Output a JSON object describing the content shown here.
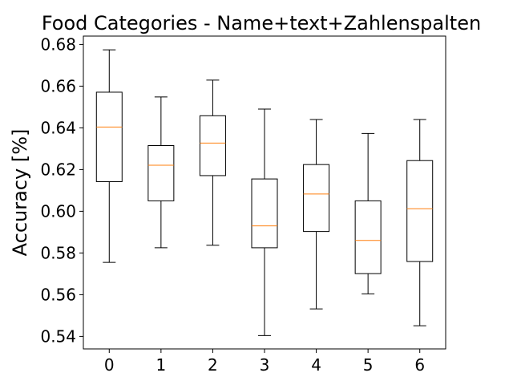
{
  "chart_data": {
    "type": "box",
    "title": "Food Categories - Name+text+Zahlenspalten",
    "xlabel": "",
    "ylabel": "Accuracy [%]",
    "ylim": [
      0.534,
      0.684
    ],
    "yticks": [
      "0.54",
      "0.56",
      "0.58",
      "0.60",
      "0.62",
      "0.64",
      "0.66",
      "0.68"
    ],
    "categories": [
      "0",
      "1",
      "2",
      "3",
      "4",
      "5",
      "6"
    ],
    "boxes": [
      {
        "whisker_low": 0.5755,
        "q1": 0.6142,
        "median": 0.6404,
        "q3": 0.6571,
        "whisker_high": 0.6774
      },
      {
        "whisker_low": 0.5825,
        "q1": 0.605,
        "median": 0.6221,
        "q3": 0.6315,
        "whisker_high": 0.6548
      },
      {
        "whisker_low": 0.5837,
        "q1": 0.6171,
        "median": 0.6327,
        "q3": 0.6458,
        "whisker_high": 0.6629
      },
      {
        "whisker_low": 0.5404,
        "q1": 0.5825,
        "median": 0.593,
        "q3": 0.6155,
        "whisker_high": 0.649
      },
      {
        "whisker_low": 0.5532,
        "q1": 0.5903,
        "median": 0.6083,
        "q3": 0.6224,
        "whisker_high": 0.644
      },
      {
        "whisker_low": 0.5604,
        "q1": 0.5701,
        "median": 0.586,
        "q3": 0.605,
        "whisker_high": 0.6373
      },
      {
        "whisker_low": 0.5451,
        "q1": 0.5759,
        "median": 0.6012,
        "q3": 0.6243,
        "whisker_high": 0.644
      }
    ],
    "grid": false,
    "colors": {
      "box": "#000000",
      "median": "#ff7f0e",
      "background": "#ffffff"
    }
  }
}
